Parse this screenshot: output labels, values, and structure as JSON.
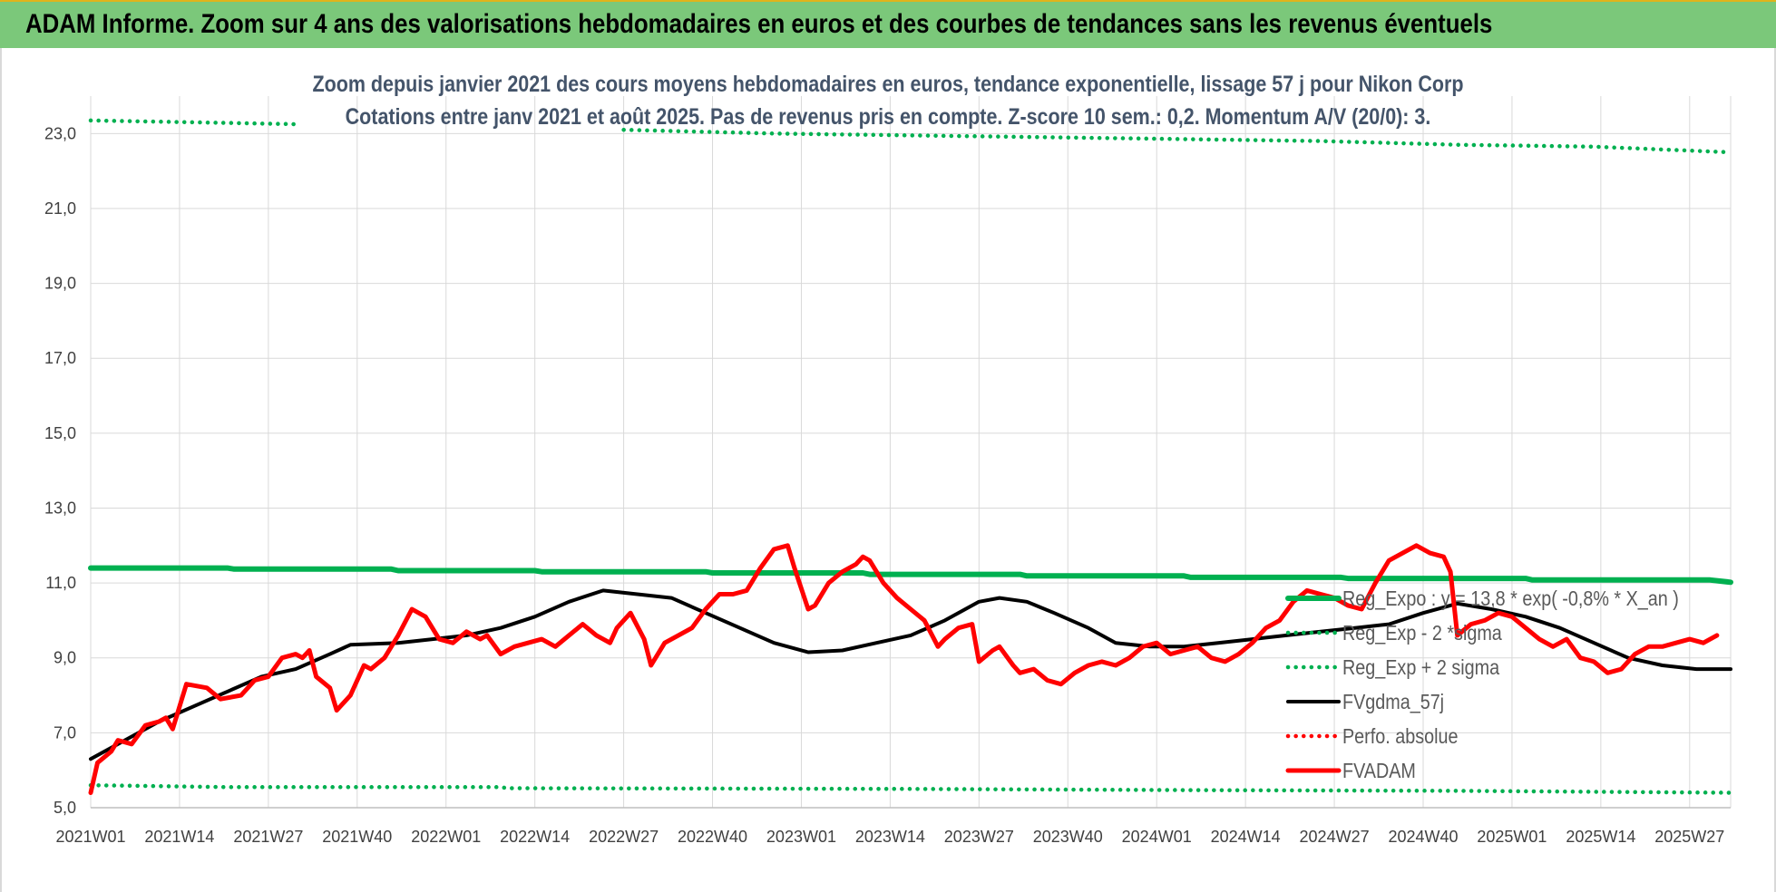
{
  "banner": {
    "text": "ADAM Informe. Zoom sur 4 ans des valorisations hebdomadaires en euros et des courbes de tendances sans les revenus éventuels"
  },
  "colors": {
    "banner": "#7bc87a",
    "reg_expo": "#00b050",
    "fvgdma": "#000000",
    "fvadam": "#ff0000",
    "perfo": "#ff0000",
    "grid": "#d9d9d9",
    "title": "#44546a"
  },
  "chart_data": {
    "type": "line",
    "title": "Zoom depuis janvier 2021 des cours moyens hebdomadaires en euros, tendance exponentielle, lissage 57 j pour Nikon Corp",
    "subtitle": "Cotations entre janv 2021 et août 2025. Pas de revenus pris en compte. Z-score 10 sem.: 0,2. Momentum A/V (20/0): 3.",
    "xlabel": "",
    "ylabel": "",
    "ylim": [
      5,
      24
    ],
    "yticks": [
      "5,0",
      "7,0",
      "9,0",
      "11,0",
      "13,0",
      "15,0",
      "17,0",
      "19,0",
      "21,0",
      "23,0"
    ],
    "ytick_values": [
      5,
      7,
      9,
      11,
      13,
      15,
      17,
      19,
      21,
      23
    ],
    "x_week_count": 241,
    "xticks": [
      "2021W01",
      "2021W14",
      "2021W27",
      "2021W40",
      "2022W01",
      "2022W14",
      "2022W27",
      "2022W40",
      "2023W01",
      "2023W14",
      "2023W27",
      "2023W40",
      "2024W01",
      "2024W14",
      "2024W27",
      "2024W40",
      "2025W01",
      "2025W14",
      "2025W27"
    ],
    "xtick_indices": [
      0,
      13,
      26,
      39,
      52,
      65,
      78,
      91,
      104,
      117,
      130,
      143,
      156,
      169,
      182,
      195,
      208,
      221,
      234
    ],
    "grid": true,
    "legend_position": "bottom-right",
    "series": [
      {
        "name": "Reg_Expo : y = 13,8 * exp( -0,8% *  X_an )",
        "style": "solid-thick",
        "color": "#00b050",
        "points": [
          [
            0,
            11.4
          ],
          [
            20,
            11.4
          ],
          [
            21,
            11.37
          ],
          [
            44,
            11.37
          ],
          [
            45,
            11.33
          ],
          [
            65,
            11.33
          ],
          [
            66,
            11.3
          ],
          [
            90,
            11.3
          ],
          [
            91,
            11.27
          ],
          [
            113,
            11.27
          ],
          [
            114,
            11.23
          ],
          [
            136,
            11.23
          ],
          [
            137,
            11.19
          ],
          [
            160,
            11.19
          ],
          [
            161,
            11.15
          ],
          [
            183,
            11.15
          ],
          [
            184,
            11.12
          ],
          [
            210,
            11.12
          ],
          [
            211,
            11.08
          ],
          [
            237,
            11.08
          ],
          [
            240,
            11.02
          ]
        ]
      },
      {
        "name": "Reg_Exp - 2 *sigma",
        "style": "dotted",
        "color": "#00b050",
        "points": [
          [
            0,
            5.6
          ],
          [
            20,
            5.55
          ],
          [
            60,
            5.55
          ],
          [
            61,
            5.52
          ],
          [
            120,
            5.5
          ],
          [
            160,
            5.47
          ],
          [
            200,
            5.45
          ],
          [
            240,
            5.4
          ]
        ]
      },
      {
        "name": "Reg_Exp + 2 sigma",
        "style": "dotted",
        "color": "#00b050",
        "points": [
          [
            0,
            23.35
          ],
          [
            15,
            23.3
          ],
          [
            30,
            23.25
          ],
          [
            30,
            null
          ],
          [
            78,
            null
          ],
          [
            78,
            23.1
          ],
          [
            100,
            23.0
          ],
          [
            140,
            22.9
          ],
          [
            180,
            22.8
          ],
          [
            200,
            22.7
          ],
          [
            220,
            22.65
          ],
          [
            240,
            22.5
          ]
        ]
      },
      {
        "name": "FVgdma_57j",
        "style": "solid",
        "color": "#000000",
        "points": [
          [
            0,
            6.3
          ],
          [
            5,
            6.8
          ],
          [
            10,
            7.3
          ],
          [
            15,
            7.7
          ],
          [
            20,
            8.1
          ],
          [
            25,
            8.5
          ],
          [
            30,
            8.7
          ],
          [
            35,
            9.1
          ],
          [
            38,
            9.35
          ],
          [
            45,
            9.4
          ],
          [
            50,
            9.5
          ],
          [
            55,
            9.6
          ],
          [
            60,
            9.8
          ],
          [
            65,
            10.1
          ],
          [
            70,
            10.5
          ],
          [
            75,
            10.8
          ],
          [
            80,
            10.7
          ],
          [
            85,
            10.6
          ],
          [
            90,
            10.2
          ],
          [
            95,
            9.8
          ],
          [
            100,
            9.4
          ],
          [
            105,
            9.15
          ],
          [
            110,
            9.2
          ],
          [
            115,
            9.4
          ],
          [
            120,
            9.6
          ],
          [
            125,
            10.0
          ],
          [
            130,
            10.5
          ],
          [
            133,
            10.6
          ],
          [
            137,
            10.5
          ],
          [
            141,
            10.2
          ],
          [
            146,
            9.8
          ],
          [
            150,
            9.4
          ],
          [
            155,
            9.3
          ],
          [
            160,
            9.3
          ],
          [
            165,
            9.4
          ],
          [
            170,
            9.5
          ],
          [
            175,
            9.6
          ],
          [
            180,
            9.7
          ],
          [
            185,
            9.8
          ],
          [
            190,
            9.9
          ],
          [
            195,
            10.2
          ],
          [
            200,
            10.45
          ],
          [
            205,
            10.3
          ],
          [
            210,
            10.1
          ],
          [
            215,
            9.8
          ],
          [
            220,
            9.4
          ],
          [
            225,
            9.0
          ],
          [
            230,
            8.8
          ],
          [
            235,
            8.7
          ],
          [
            240,
            8.7
          ]
        ]
      },
      {
        "name": "Perfo. absolue",
        "style": "dotted",
        "color": "#ff0000",
        "points": []
      },
      {
        "name": "FVADAM",
        "style": "solid-thick",
        "color": "#ff0000",
        "points": [
          [
            0,
            5.4
          ],
          [
            1,
            6.2
          ],
          [
            3,
            6.5
          ],
          [
            4,
            6.8
          ],
          [
            6,
            6.7
          ],
          [
            8,
            7.2
          ],
          [
            10,
            7.3
          ],
          [
            11,
            7.4
          ],
          [
            12,
            7.1
          ],
          [
            14,
            8.3
          ],
          [
            17,
            8.2
          ],
          [
            19,
            7.9
          ],
          [
            22,
            8.0
          ],
          [
            24,
            8.4
          ],
          [
            26,
            8.5
          ],
          [
            28,
            9.0
          ],
          [
            30,
            9.1
          ],
          [
            31,
            9.0
          ],
          [
            32,
            9.2
          ],
          [
            33,
            8.5
          ],
          [
            35,
            8.2
          ],
          [
            36,
            7.6
          ],
          [
            38,
            8.0
          ],
          [
            40,
            8.8
          ],
          [
            41,
            8.7
          ],
          [
            43,
            9.0
          ],
          [
            45,
            9.6
          ],
          [
            47,
            10.3
          ],
          [
            49,
            10.1
          ],
          [
            51,
            9.5
          ],
          [
            53,
            9.4
          ],
          [
            55,
            9.7
          ],
          [
            57,
            9.5
          ],
          [
            58,
            9.6
          ],
          [
            60,
            9.1
          ],
          [
            62,
            9.3
          ],
          [
            64,
            9.4
          ],
          [
            66,
            9.5
          ],
          [
            68,
            9.3
          ],
          [
            70,
            9.6
          ],
          [
            72,
            9.9
          ],
          [
            74,
            9.6
          ],
          [
            76,
            9.4
          ],
          [
            77,
            9.8
          ],
          [
            79,
            10.2
          ],
          [
            81,
            9.5
          ],
          [
            82,
            8.8
          ],
          [
            84,
            9.4
          ],
          [
            86,
            9.6
          ],
          [
            88,
            9.8
          ],
          [
            90,
            10.3
          ],
          [
            92,
            10.7
          ],
          [
            94,
            10.7
          ],
          [
            96,
            10.8
          ],
          [
            98,
            11.4
          ],
          [
            100,
            11.9
          ],
          [
            102,
            12.0
          ],
          [
            103,
            11.4
          ],
          [
            105,
            10.3
          ],
          [
            106,
            10.4
          ],
          [
            108,
            11.0
          ],
          [
            110,
            11.3
          ],
          [
            112,
            11.5
          ],
          [
            113,
            11.7
          ],
          [
            114,
            11.6
          ],
          [
            116,
            11.0
          ],
          [
            118,
            10.6
          ],
          [
            120,
            10.3
          ],
          [
            122,
            10.0
          ],
          [
            124,
            9.3
          ],
          [
            125,
            9.5
          ],
          [
            127,
            9.8
          ],
          [
            129,
            9.9
          ],
          [
            130,
            8.9
          ],
          [
            132,
            9.2
          ],
          [
            133,
            9.3
          ],
          [
            135,
            8.8
          ],
          [
            136,
            8.6
          ],
          [
            138,
            8.7
          ],
          [
            140,
            8.4
          ],
          [
            142,
            8.3
          ],
          [
            144,
            8.6
          ],
          [
            146,
            8.8
          ],
          [
            148,
            8.9
          ],
          [
            150,
            8.8
          ],
          [
            152,
            9.0
          ],
          [
            154,
            9.3
          ],
          [
            156,
            9.4
          ],
          [
            158,
            9.1
          ],
          [
            160,
            9.2
          ],
          [
            162,
            9.3
          ],
          [
            164,
            9.0
          ],
          [
            166,
            8.9
          ],
          [
            168,
            9.1
          ],
          [
            170,
            9.4
          ],
          [
            172,
            9.8
          ],
          [
            174,
            10.0
          ],
          [
            176,
            10.5
          ],
          [
            178,
            10.8
          ],
          [
            180,
            10.7
          ],
          [
            182,
            10.6
          ],
          [
            184,
            10.4
          ],
          [
            186,
            10.3
          ],
          [
            188,
            11.0
          ],
          [
            190,
            11.6
          ],
          [
            192,
            11.8
          ],
          [
            194,
            12.0
          ],
          [
            196,
            11.8
          ],
          [
            198,
            11.7
          ],
          [
            199,
            11.3
          ],
          [
            200,
            9.6
          ],
          [
            202,
            9.9
          ],
          [
            204,
            10.0
          ],
          [
            206,
            10.2
          ],
          [
            208,
            10.1
          ],
          [
            210,
            9.8
          ],
          [
            212,
            9.5
          ],
          [
            214,
            9.3
          ],
          [
            216,
            9.5
          ],
          [
            218,
            9.0
          ],
          [
            220,
            8.9
          ],
          [
            222,
            8.6
          ],
          [
            224,
            8.7
          ],
          [
            226,
            9.1
          ],
          [
            228,
            9.3
          ],
          [
            230,
            9.3
          ],
          [
            232,
            9.4
          ],
          [
            234,
            9.5
          ],
          [
            236,
            9.4
          ],
          [
            238,
            9.6
          ]
        ]
      }
    ]
  }
}
